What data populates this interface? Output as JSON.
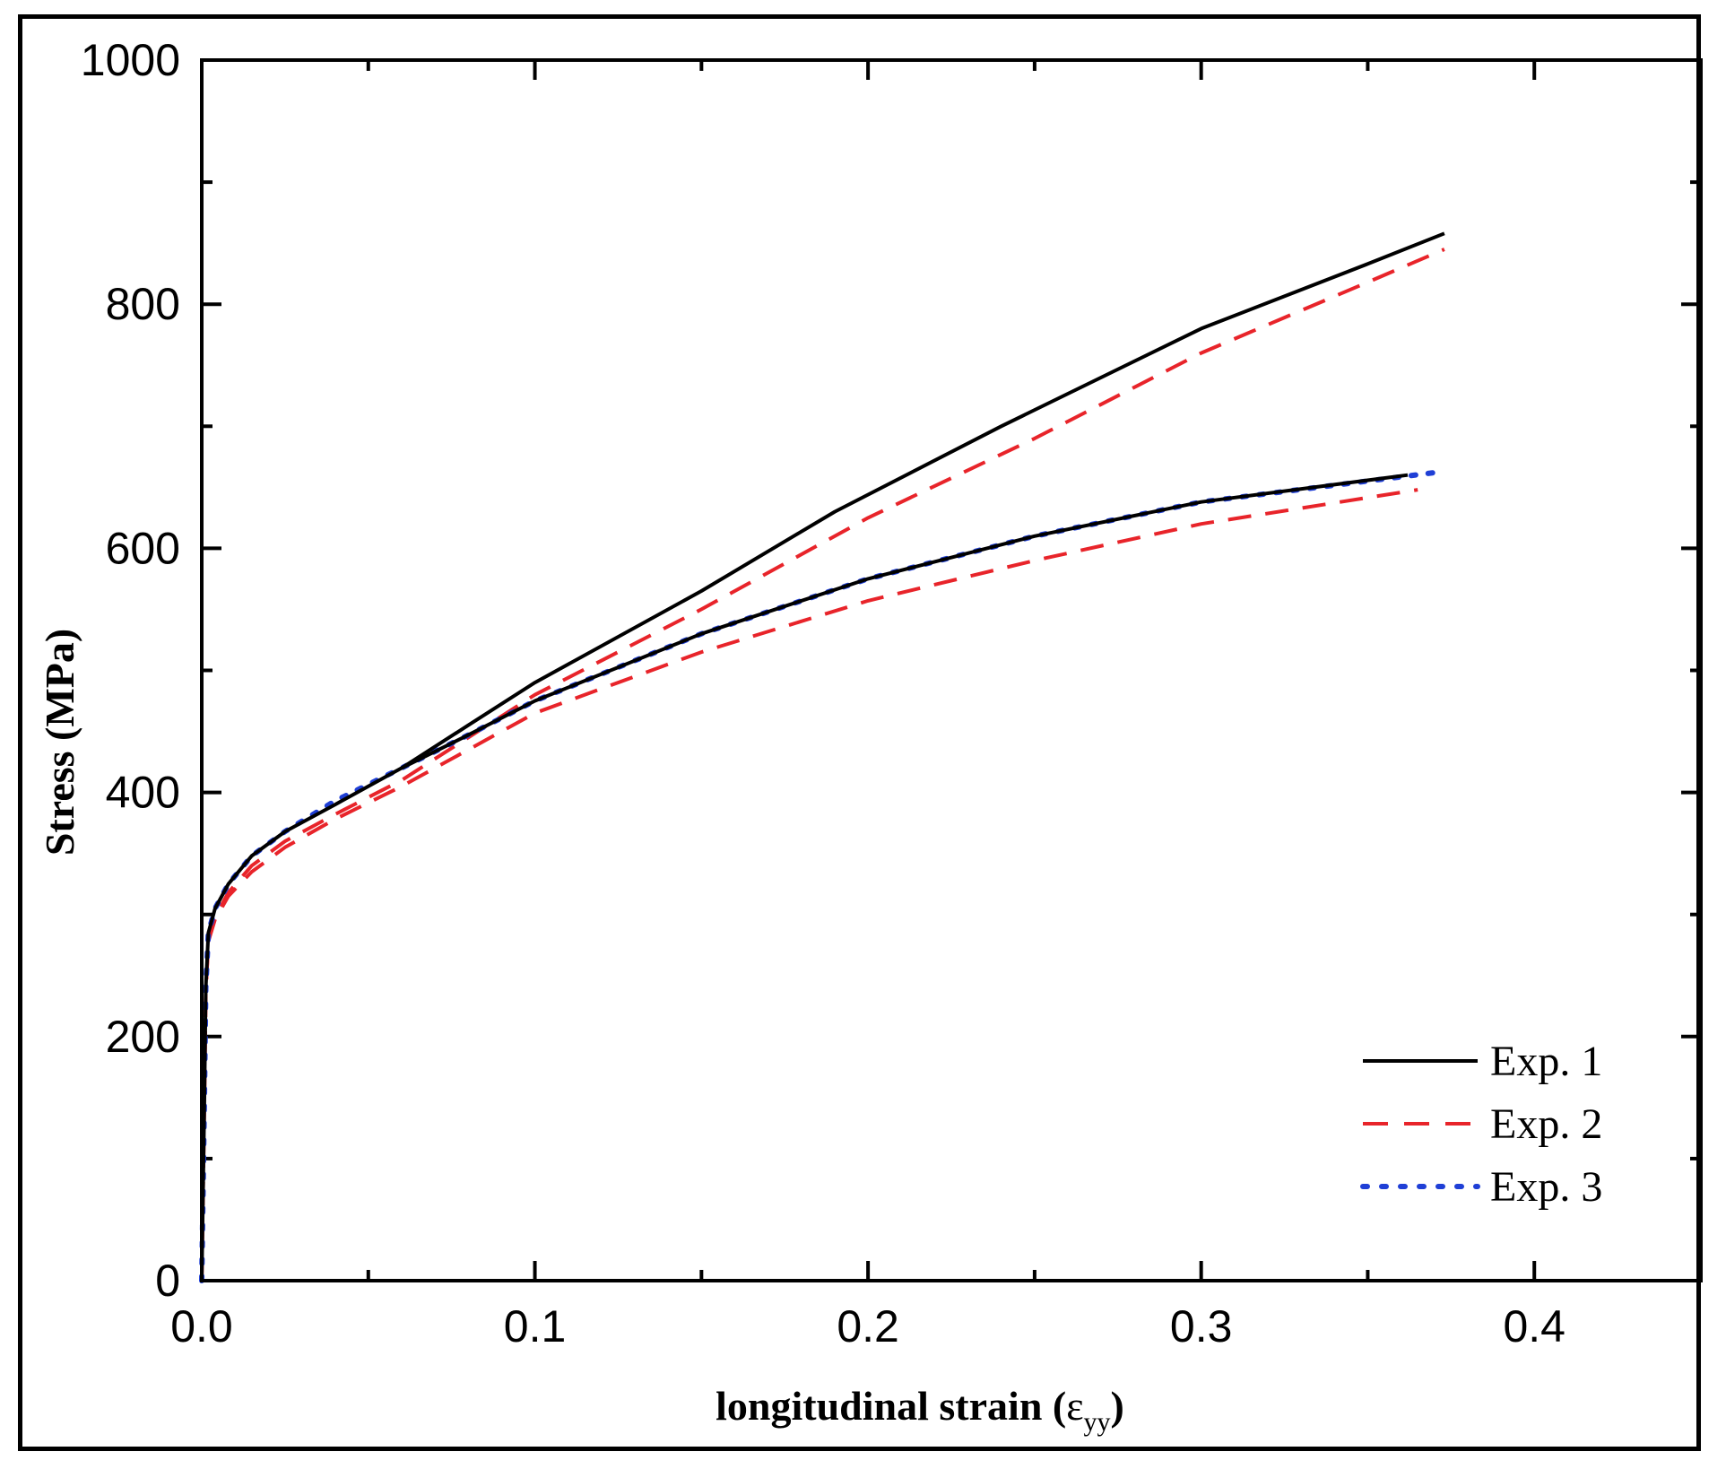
{
  "chart_data": {
    "type": "line",
    "title": "",
    "xlabel": "longitudinal strain (",
    "xlabel_symbol": "ε",
    "xlabel_subscript": "yy",
    "xlabel_close": ")",
    "ylabel": "Stress (MPa)",
    "xlim": [
      0.0,
      0.45
    ],
    "ylim": [
      0,
      1000
    ],
    "x_ticks": [
      0.0,
      0.1,
      0.2,
      0.3,
      0.4
    ],
    "x_tick_labels": [
      "0.0",
      "0.1",
      "0.2",
      "0.3",
      "0.4"
    ],
    "x_minor_ticks": [
      0.05,
      0.15,
      0.25,
      0.35
    ],
    "y_ticks": [
      0,
      200,
      400,
      600,
      800,
      1000
    ],
    "y_tick_labels": [
      "0",
      "200",
      "400",
      "600",
      "800",
      "1000"
    ],
    "y_minor_ticks": [
      100,
      300,
      500,
      700,
      900
    ],
    "legend_position": "bottom-right",
    "series": [
      {
        "name": "Exp. 1",
        "legend_label": "Exp. 1",
        "color": "#000000",
        "style": "solid",
        "x": [
          0,
          0.0008,
          0.0012,
          0.002,
          0.004,
          0.008,
          0.015,
          0.025,
          0.04,
          0.06,
          0.08,
          0.1,
          0.15,
          0.19,
          0.24,
          0.3,
          0.35,
          0.373
        ],
        "y": [
          0,
          150,
          240,
          285,
          305,
          325,
          348,
          368,
          390,
          420,
          455,
          490,
          565,
          630,
          700,
          780,
          833,
          858
        ]
      },
      {
        "name": "Exp. 2 (upper)",
        "legend_label": "Exp. 2",
        "color": "#e8242a",
        "style": "dashed",
        "x": [
          0,
          0.0008,
          0.0012,
          0.002,
          0.004,
          0.008,
          0.015,
          0.025,
          0.04,
          0.06,
          0.08,
          0.1,
          0.15,
          0.2,
          0.25,
          0.3,
          0.35,
          0.373
        ],
        "y": [
          0,
          150,
          235,
          278,
          298,
          318,
          340,
          360,
          382,
          410,
          445,
          480,
          550,
          625,
          690,
          760,
          818,
          845
        ]
      },
      {
        "name": "Exp. 2 (lower)",
        "legend_label": "",
        "color": "#e8242a",
        "style": "dashed",
        "x": [
          0,
          0.0008,
          0.0012,
          0.002,
          0.004,
          0.008,
          0.015,
          0.025,
          0.04,
          0.06,
          0.08,
          0.1,
          0.15,
          0.2,
          0.25,
          0.3,
          0.365
        ],
        "y": [
          0,
          150,
          235,
          278,
          296,
          315,
          335,
          355,
          378,
          405,
          435,
          465,
          515,
          557,
          590,
          620,
          648
        ]
      },
      {
        "name": "Exp. 3",
        "legend_label": "Exp. 3",
        "color": "#1f3fd6",
        "style": "dotted",
        "x": [
          0,
          0.0008,
          0.0012,
          0.002,
          0.004,
          0.008,
          0.015,
          0.025,
          0.04,
          0.06,
          0.08,
          0.1,
          0.15,
          0.2,
          0.25,
          0.3,
          0.37
        ],
        "y": [
          0,
          150,
          240,
          285,
          305,
          325,
          348,
          368,
          393,
          420,
          447,
          475,
          530,
          575,
          610,
          638,
          662
        ]
      },
      {
        "name": "Exp. 1 (lower)",
        "legend_label": "",
        "color": "#000000",
        "style": "solid",
        "x": [
          0.06,
          0.08,
          0.1,
          0.15,
          0.2,
          0.25,
          0.3,
          0.362
        ],
        "y": [
          420,
          447,
          475,
          530,
          575,
          610,
          638,
          660
        ]
      }
    ]
  }
}
